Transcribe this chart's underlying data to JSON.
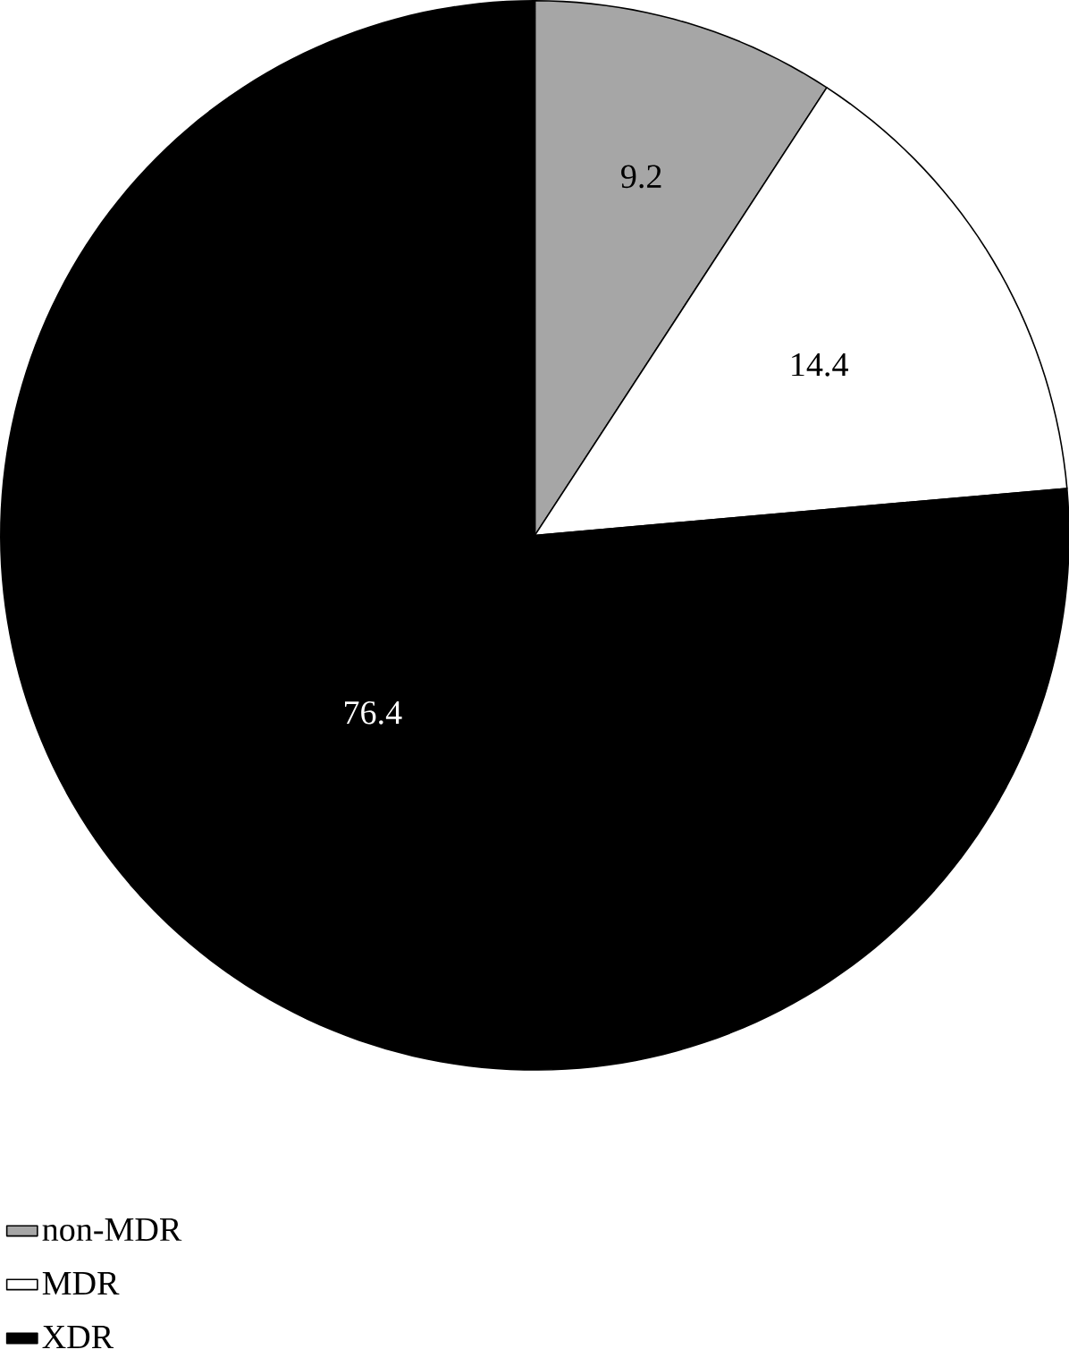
{
  "chart_data": {
    "type": "pie",
    "categories": [
      "non-MDR",
      "MDR",
      "XDR"
    ],
    "values": [
      9.2,
      14.4,
      76.4
    ],
    "colors": [
      "#a6a6a6",
      "#ffffff",
      "#000000"
    ],
    "data_labels": true,
    "legend": "bottom left"
  }
}
